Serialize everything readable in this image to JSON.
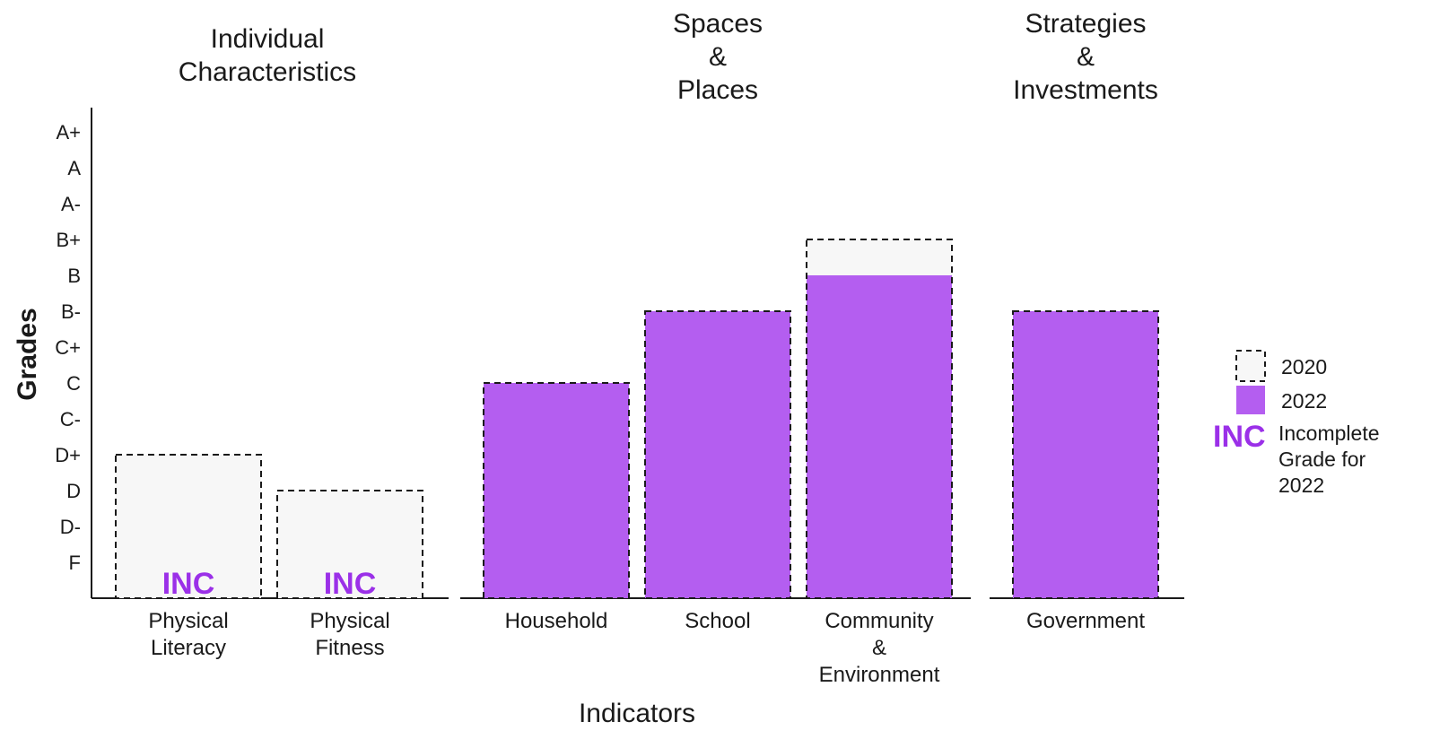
{
  "chart_data": {
    "type": "bar",
    "xlabel": "Indicators",
    "ylabel": "Grades",
    "grade_scale": [
      "F",
      "D-",
      "D",
      "D+",
      "C-",
      "C",
      "C+",
      "B-",
      "B",
      "B+",
      "A-",
      "A",
      "A+"
    ],
    "panels": [
      {
        "title": [
          "Individual",
          "Characteristics"
        ],
        "categories": [
          {
            "label": [
              "Physical",
              "Literacy"
            ],
            "grade_2020": "D+",
            "grade_2022": "INC"
          },
          {
            "label": [
              "Physical",
              "Fitness"
            ],
            "grade_2020": "D",
            "grade_2022": "INC"
          }
        ]
      },
      {
        "title": [
          "Spaces",
          "&",
          "Places"
        ],
        "categories": [
          {
            "label": [
              "Household"
            ],
            "grade_2020": "C",
            "grade_2022": "C"
          },
          {
            "label": [
              "School"
            ],
            "grade_2020": "B-",
            "grade_2022": "B-"
          },
          {
            "label": [
              "Community",
              "&",
              "Environment"
            ],
            "grade_2020": "B+",
            "grade_2022": "B"
          }
        ]
      },
      {
        "title": [
          "Strategies",
          "&",
          "Investments"
        ],
        "categories": [
          {
            "label": [
              "Government"
            ],
            "grade_2020": "B-",
            "grade_2022": "B-"
          }
        ]
      }
    ],
    "series": [
      {
        "name": "2020",
        "style": "dashed-outline",
        "color": "#1a1a1a"
      },
      {
        "name": "2022",
        "style": "filled",
        "color": "#b45ef0"
      }
    ],
    "incomplete_marker": "INC",
    "legend": {
      "position": "right",
      "entries": [
        "2020",
        "2022"
      ],
      "inc_symbol": "INC",
      "inc_label": [
        "Incomplete",
        "Grade for",
        "2022"
      ]
    },
    "colors": {
      "fill_2022": "#b45ef0",
      "inc_text": "#9b30e8",
      "background_2020": "#f7f7f7"
    }
  }
}
